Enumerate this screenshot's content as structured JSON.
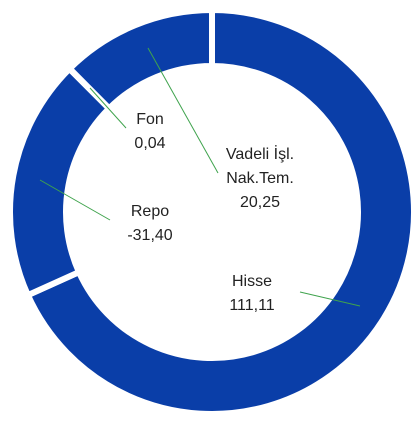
{
  "chart_data": {
    "type": "donut",
    "categories": [
      "Hisse",
      "Repo",
      "Fon",
      "Vadeli İşl.\nNak.Tem."
    ],
    "values": [
      111.11,
      -31.4,
      0.04,
      20.25
    ],
    "value_labels": [
      "111,11",
      "-31,40",
      "0,04",
      "20,25"
    ],
    "color": "#0a3ea8",
    "leader_color": "#3fa34d"
  }
}
